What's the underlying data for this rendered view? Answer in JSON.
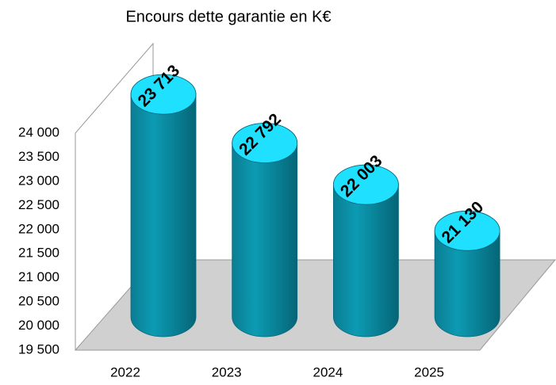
{
  "chart_data": {
    "type": "bar",
    "title": "Encours dette garantie en K€",
    "categories": [
      "2022",
      "2023",
      "2024",
      "2025"
    ],
    "values": [
      23713,
      22792,
      22003,
      21130
    ],
    "value_labels": [
      "23 713",
      "22 792",
      "22 003",
      "21 130"
    ],
    "color": "#0a8ca3",
    "top_color": "#1fe0ff",
    "ylim": [
      19500,
      24000
    ],
    "yticks": [
      {
        "value": 19500,
        "label": "19 500"
      },
      {
        "value": 20000,
        "label": "20 000"
      },
      {
        "value": 20500,
        "label": "20 500"
      },
      {
        "value": 21000,
        "label": "21 000"
      },
      {
        "value": 21500,
        "label": "21 500"
      },
      {
        "value": 22000,
        "label": "22 000"
      },
      {
        "value": 22500,
        "label": "22 500"
      },
      {
        "value": 23000,
        "label": "23 000"
      },
      {
        "value": 23500,
        "label": "23 500"
      },
      {
        "value": 24000,
        "label": "24 000"
      }
    ]
  }
}
